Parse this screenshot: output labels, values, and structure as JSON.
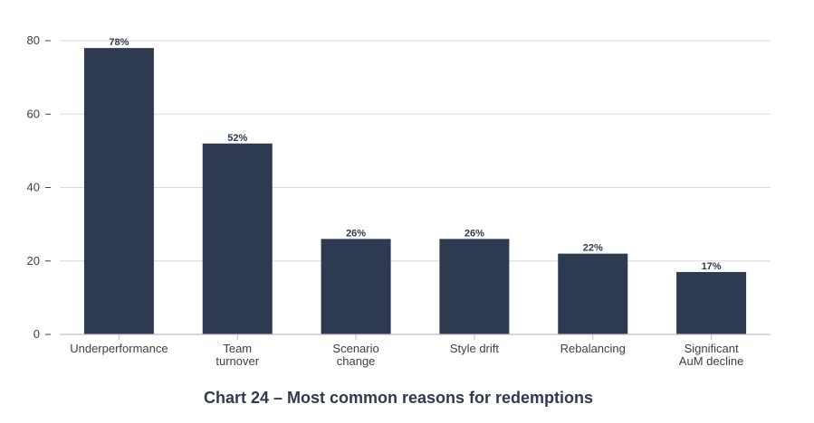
{
  "chart_data": {
    "type": "bar",
    "title": "Chart 24 – Most common reasons for redemptions",
    "categories": [
      [
        "Underperformance"
      ],
      [
        "Team",
        "turnover"
      ],
      [
        "Scenario",
        "change"
      ],
      [
        "Style drift"
      ],
      [
        "Rebalancing"
      ],
      [
        "Significant",
        "AuM decline"
      ]
    ],
    "values": [
      78,
      52,
      26,
      26,
      22,
      17
    ],
    "data_labels": [
      "78%",
      "52%",
      "26%",
      "26%",
      "22%",
      "17%"
    ],
    "ylim": [
      0,
      80
    ],
    "yticks": [
      0,
      20,
      40,
      60,
      80
    ],
    "xlabel": "",
    "ylabel": "",
    "grid": true,
    "legend": "none",
    "colors": {
      "bar": "#2e3a4f",
      "grid": "#d9d9d9",
      "axis": "#bfbfbf",
      "text": "#404040"
    }
  }
}
